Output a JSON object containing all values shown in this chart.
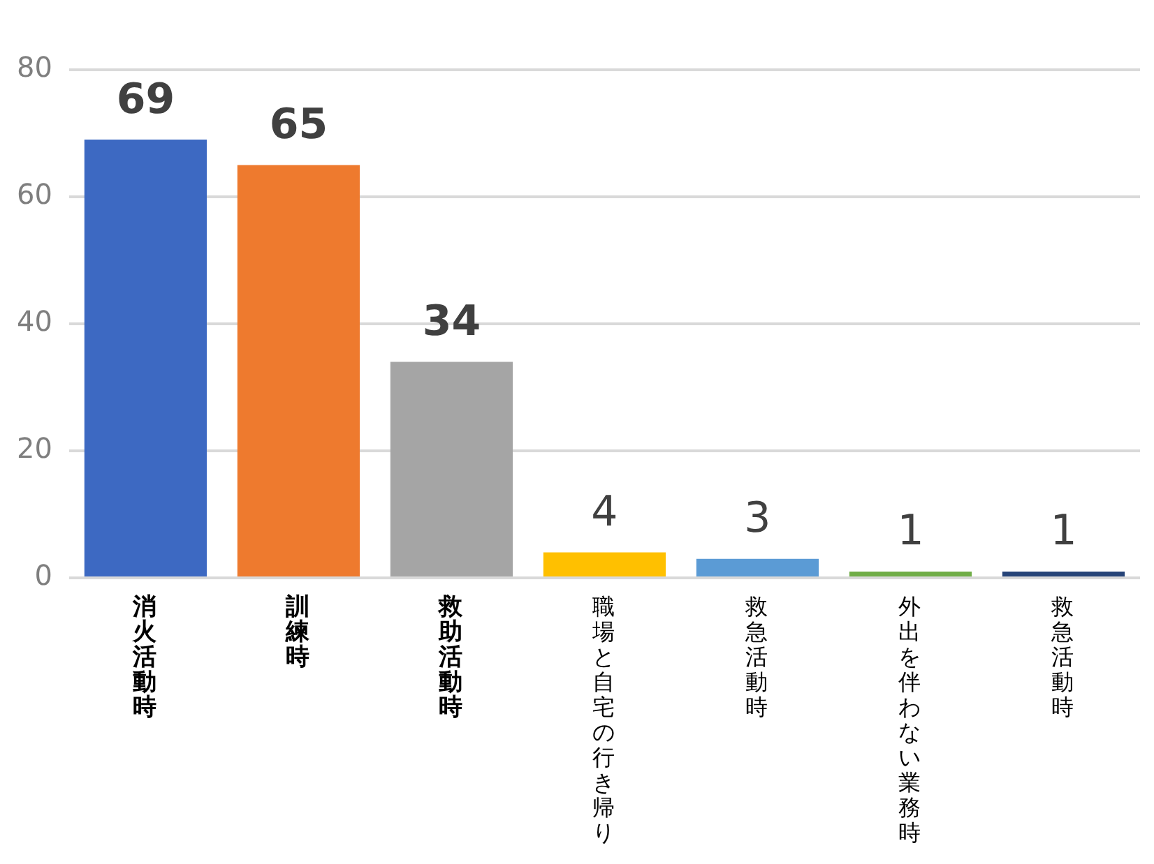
{
  "chart_data": {
    "type": "bar",
    "categories": [
      "消火活動時",
      "訓練時",
      "救助活動時",
      "職場と自宅の行き帰り",
      "救急活動時",
      "外出を伴わない業務時",
      "救急活動時"
    ],
    "values": [
      69,
      65,
      34,
      4,
      3,
      1,
      1
    ],
    "colors": [
      "#3d69c2",
      "#ee7a2e",
      "#a5a5a5",
      "#ffc000",
      "#5b9bd5",
      "#70ad47",
      "#264478"
    ],
    "ylim": [
      0,
      80
    ],
    "yticks": [
      0,
      20,
      40,
      60,
      80
    ],
    "grid": "y",
    "data_labels": true,
    "legend": false
  }
}
